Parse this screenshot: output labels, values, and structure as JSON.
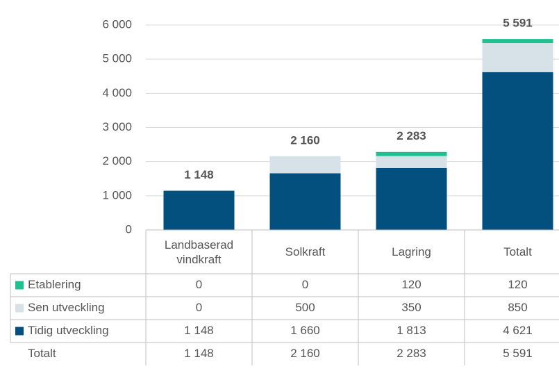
{
  "chart_data": {
    "type": "bar",
    "categories": [
      "Landbaserad vindkraft",
      "Solkraft",
      "Lagring",
      "Totalt"
    ],
    "series": [
      {
        "name": "Etablering",
        "color": "#21c090",
        "values": [
          0,
          0,
          120,
          120
        ],
        "value_labels": [
          "0",
          "0",
          "120",
          "120"
        ]
      },
      {
        "name": "Sen utveckling",
        "color": "#d7e1e8",
        "values": [
          0,
          500,
          350,
          850
        ],
        "value_labels": [
          "0",
          "500",
          "350",
          "850"
        ]
      },
      {
        "name": "Tidig utveckling",
        "color": "#034f7e",
        "values": [
          1148,
          1660,
          1813,
          4621
        ],
        "value_labels": [
          "1 148",
          "1 660",
          "1 813",
          "4 621"
        ]
      }
    ],
    "totals": {
      "name": "Totalt",
      "values": [
        1148,
        2160,
        2283,
        5591
      ],
      "value_labels": [
        "1 148",
        "2 160",
        "2 283",
        "5 591"
      ]
    },
    "ylim": [
      0,
      6000
    ],
    "yticks": [
      0,
      {
        "value": 1000,
        "label": "1 000"
      },
      {
        "value": 2000,
        "label": "2 000"
      },
      {
        "value": 3000,
        "label": "3 000"
      },
      {
        "value": 4000,
        "label": "4 000"
      },
      {
        "value": 5000,
        "label": "5 000"
      },
      {
        "value": 6000,
        "label": "6 000"
      }
    ],
    "grid": true
  }
}
